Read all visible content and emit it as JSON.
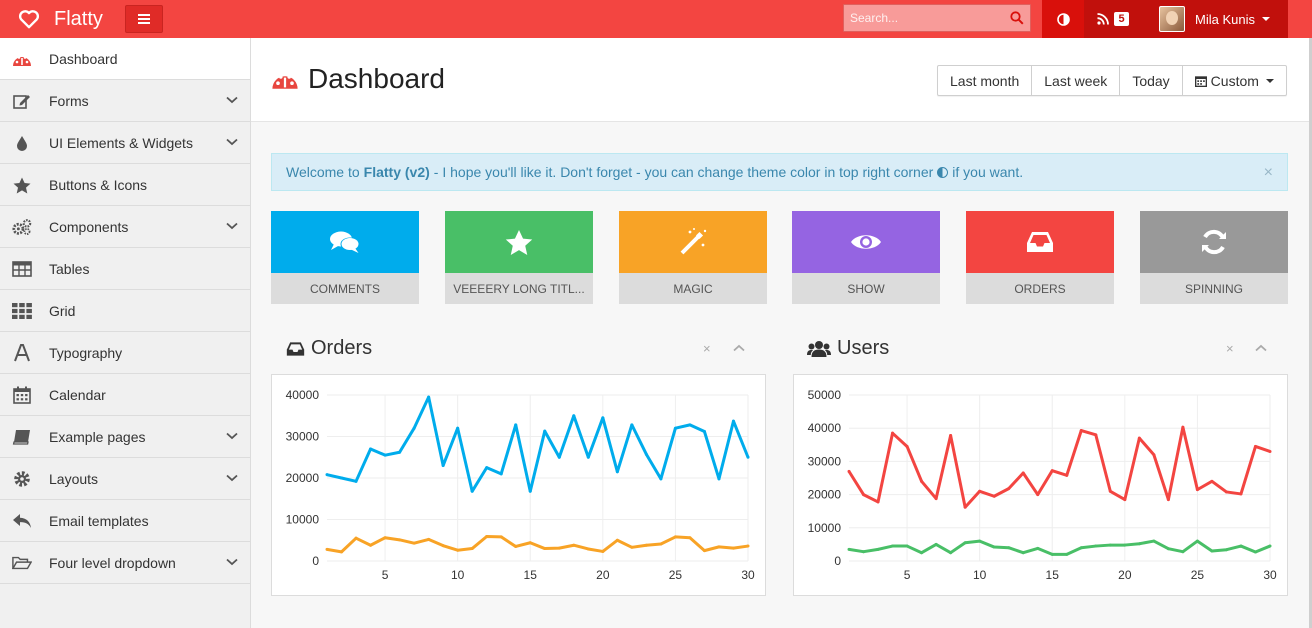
{
  "app": {
    "brand": "Flatty",
    "search_placeholder": "Search...",
    "rss_count": "5",
    "user_name": "Mila Kunis"
  },
  "sidebar": {
    "items": [
      {
        "label": "Dashboard",
        "icon": "dashboard-icon"
      },
      {
        "label": "Forms",
        "icon": "edit-icon"
      },
      {
        "label": "UI Elements & Widgets",
        "icon": "tint-icon"
      },
      {
        "label": "Buttons & Icons",
        "icon": "star-icon"
      },
      {
        "label": "Components",
        "icon": "cogs-icon"
      },
      {
        "label": "Tables",
        "icon": "table-icon"
      },
      {
        "label": "Grid",
        "icon": "grid-icon"
      },
      {
        "label": "Typography",
        "icon": "font-icon"
      },
      {
        "label": "Calendar",
        "icon": "calendar-icon"
      },
      {
        "label": "Example pages",
        "icon": "book-icon"
      },
      {
        "label": "Layouts",
        "icon": "cog-icon"
      },
      {
        "label": "Email templates",
        "icon": "reply-icon"
      },
      {
        "label": "Four level dropdown",
        "icon": "folder-open-icon"
      }
    ]
  },
  "header": {
    "title": "Dashboard",
    "ranges": [
      "Last month",
      "Last week",
      "Today",
      "Custom"
    ]
  },
  "alert": {
    "prefix": "Welcome to",
    "strong": "Flatty (v2)",
    "text": "- I hope you'll like it. Don't forget - you can change theme color in top right corner",
    "suffix": "if you want.",
    "close": "×"
  },
  "tiles": [
    {
      "label": "COMMENTS",
      "color": "#00acec",
      "icon": "comments-icon"
    },
    {
      "label": "VEEEERY LONG TITL...",
      "color": "#49bf67",
      "icon": "star-icon"
    },
    {
      "label": "MAGIC",
      "color": "#f8a326",
      "icon": "magic-icon"
    },
    {
      "label": "SHOW",
      "color": "#9564e2",
      "icon": "eye-icon"
    },
    {
      "label": "ORDERS",
      "color": "#f34541",
      "icon": "inbox-icon"
    },
    {
      "label": "SPINNING",
      "color": "#999999",
      "icon": "refresh-icon"
    }
  ],
  "panels": {
    "orders_title": "Orders",
    "users_title": "Users",
    "close": "×",
    "collapse": "⌃"
  },
  "chart_data": [
    {
      "type": "line",
      "title": "Orders",
      "x": [
        1,
        2,
        3,
        4,
        5,
        6,
        7,
        8,
        9,
        10,
        11,
        12,
        13,
        14,
        15,
        16,
        17,
        18,
        19,
        20,
        21,
        22,
        23,
        24,
        25,
        26,
        27,
        28,
        29,
        30
      ],
      "xticks": [
        5,
        10,
        15,
        20,
        25,
        30
      ],
      "ylim": [
        0,
        40000
      ],
      "yticks": [
        0,
        10000,
        20000,
        30000,
        40000
      ],
      "grid": true,
      "series": [
        {
          "color": "#00acec",
          "values": [
            20800,
            20000,
            19200,
            27000,
            25500,
            26200,
            32000,
            39500,
            23000,
            32000,
            16800,
            22500,
            21000,
            32800,
            16800,
            31300,
            25000,
            35000,
            25000,
            34500,
            21500,
            32800,
            25700,
            19800,
            32000,
            32800,
            31200,
            19800,
            33700,
            25000
          ]
        },
        {
          "color": "#f8a326",
          "values": [
            2800,
            2200,
            5500,
            3800,
            5600,
            5100,
            4300,
            5200,
            3700,
            2600,
            3000,
            5900,
            5800,
            3500,
            4400,
            3000,
            3100,
            3800,
            2900,
            2300,
            5000,
            3300,
            3800,
            4100,
            5800,
            5600,
            2500,
            3400,
            3100,
            3600
          ]
        }
      ]
    },
    {
      "type": "line",
      "title": "Users",
      "x": [
        1,
        2,
        3,
        4,
        5,
        6,
        7,
        8,
        9,
        10,
        11,
        12,
        13,
        14,
        15,
        16,
        17,
        18,
        19,
        20,
        21,
        22,
        23,
        24,
        25,
        26,
        27,
        28,
        29,
        30
      ],
      "xticks": [
        5,
        10,
        15,
        20,
        25,
        30
      ],
      "ylim": [
        0,
        50000
      ],
      "yticks": [
        0,
        10000,
        20000,
        30000,
        40000,
        50000
      ],
      "grid": true,
      "series": [
        {
          "color": "#f34541",
          "values": [
            27000,
            20000,
            17800,
            38500,
            34500,
            24000,
            18800,
            37800,
            16200,
            21000,
            19500,
            21800,
            26500,
            20000,
            27200,
            25800,
            39300,
            38000,
            21000,
            18500,
            37000,
            32000,
            18500,
            40300,
            21500,
            24000,
            20800,
            20200,
            34500,
            33000
          ]
        },
        {
          "color": "#49bf67",
          "values": [
            3500,
            2800,
            3500,
            4500,
            4500,
            2500,
            5000,
            2500,
            5500,
            6000,
            4200,
            4000,
            2500,
            3800,
            2000,
            2000,
            4000,
            4500,
            4800,
            4800,
            5200,
            6000,
            3700,
            2800,
            6000,
            3000,
            3400,
            4500,
            2700,
            4500
          ]
        }
      ]
    }
  ]
}
